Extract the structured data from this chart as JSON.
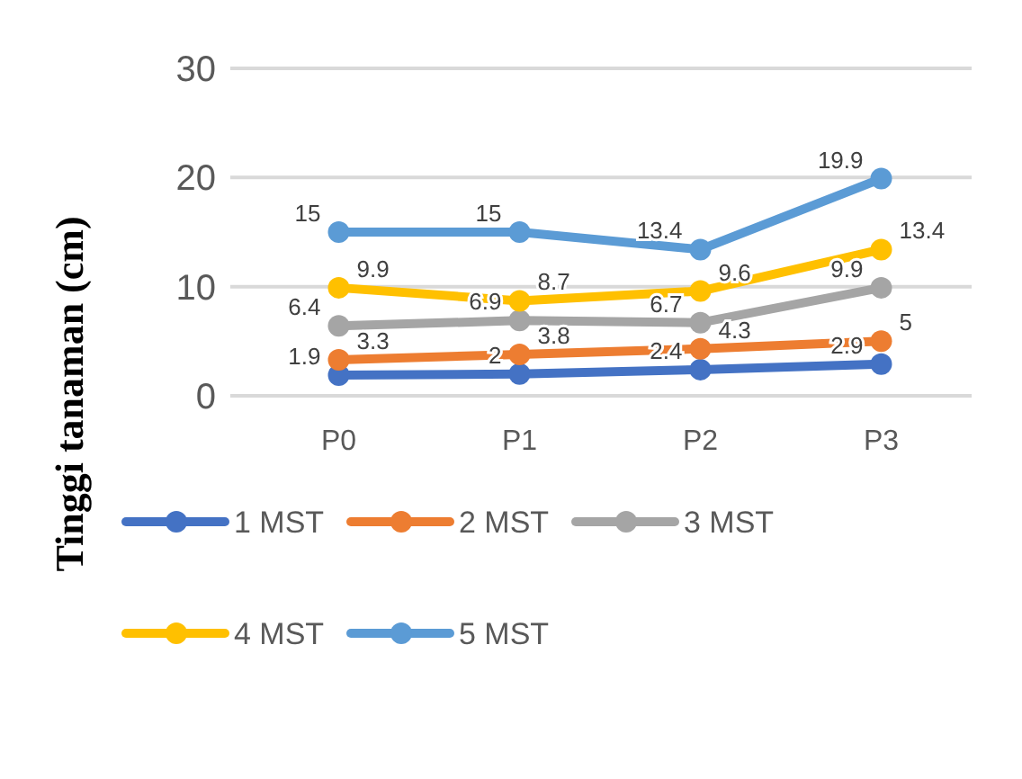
{
  "chart_data": {
    "type": "line",
    "ylabel": "Tinggi tanaman  (cm)",
    "categories": [
      "P0",
      "P1",
      "P2",
      "P3"
    ],
    "series": [
      {
        "name": "1 MST",
        "color": "#4472c4",
        "values": [
          1.9,
          2,
          2.4,
          2.9
        ]
      },
      {
        "name": "2 MST",
        "color": "#ed7d31",
        "values": [
          3.3,
          3.8,
          4.3,
          5
        ]
      },
      {
        "name": "3 MST",
        "color": "#a5a5a5",
        "values": [
          6.4,
          6.9,
          6.7,
          9.9
        ]
      },
      {
        "name": "4 MST",
        "color": "#ffc000",
        "values": [
          9.9,
          8.7,
          9.6,
          13.4
        ]
      },
      {
        "name": "5 MST",
        "color": "#5b9bd5",
        "values": [
          15,
          15,
          13.4,
          19.9
        ]
      }
    ],
    "ylim": [
      0,
      30
    ],
    "yticks": [
      0,
      10,
      20,
      30
    ],
    "grid": "y",
    "legend": "bottom",
    "marker": "circle",
    "line_style": "solid",
    "data_labels": true
  }
}
